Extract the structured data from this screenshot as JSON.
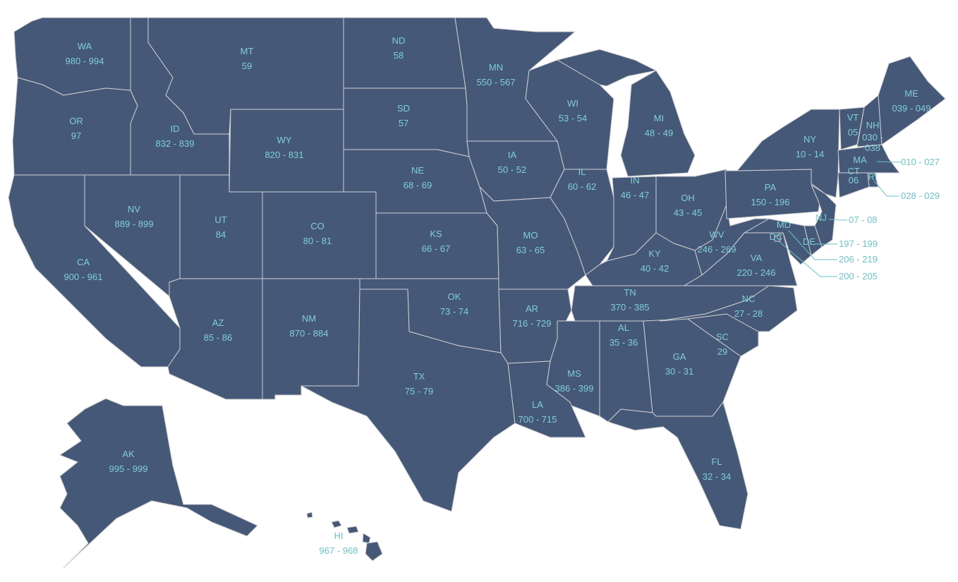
{
  "map": {
    "fill_color": "#465878",
    "border_color": "#cfcfcf",
    "label_color": "#7ecfd3",
    "states": [
      {
        "abbr": "WA",
        "zip": "980 - 994"
      },
      {
        "abbr": "OR",
        "zip": "97"
      },
      {
        "abbr": "CA",
        "zip": "900 - 961"
      },
      {
        "abbr": "ID",
        "zip": "832 - 839"
      },
      {
        "abbr": "MT",
        "zip": "59"
      },
      {
        "abbr": "WY",
        "zip": "820 - 831"
      },
      {
        "abbr": "NV",
        "zip": "889 - 899"
      },
      {
        "abbr": "UT",
        "zip": "84"
      },
      {
        "abbr": "CO",
        "zip": "80 - 81"
      },
      {
        "abbr": "AZ",
        "zip": "85 - 86"
      },
      {
        "abbr": "NM",
        "zip": "870 - 884"
      },
      {
        "abbr": "ND",
        "zip": "58"
      },
      {
        "abbr": "SD",
        "zip": "57"
      },
      {
        "abbr": "NE",
        "zip": "68 - 69"
      },
      {
        "abbr": "KS",
        "zip": "66 - 67"
      },
      {
        "abbr": "OK",
        "zip": "73 - 74"
      },
      {
        "abbr": "TX",
        "zip": "75 - 79"
      },
      {
        "abbr": "MN",
        "zip": "550 - 567"
      },
      {
        "abbr": "IA",
        "zip": "50 - 52"
      },
      {
        "abbr": "MO",
        "zip": "63 - 65"
      },
      {
        "abbr": "AR",
        "zip": "716 - 729"
      },
      {
        "abbr": "LA",
        "zip": "700 - 715"
      },
      {
        "abbr": "WI",
        "zip": "53 - 54"
      },
      {
        "abbr": "IL",
        "zip": "60 - 62"
      },
      {
        "abbr": "MI",
        "zip": "48 - 49"
      },
      {
        "abbr": "IN",
        "zip": "46 - 47"
      },
      {
        "abbr": "OH",
        "zip": "43 - 45"
      },
      {
        "abbr": "KY",
        "zip": "40 - 42"
      },
      {
        "abbr": "TN",
        "zip": "370 - 385"
      },
      {
        "abbr": "MS",
        "zip": "386 - 399"
      },
      {
        "abbr": "AL",
        "zip": "35 - 36"
      },
      {
        "abbr": "GA",
        "zip": "30 - 31"
      },
      {
        "abbr": "FL",
        "zip": "32 - 34"
      },
      {
        "abbr": "SC",
        "zip": "29"
      },
      {
        "abbr": "NC",
        "zip": "27 - 28"
      },
      {
        "abbr": "VA",
        "zip": "220 - 246"
      },
      {
        "abbr": "WV",
        "zip": "246 - 269"
      },
      {
        "abbr": "PA",
        "zip": "150 - 196"
      },
      {
        "abbr": "NY",
        "zip": "10 - 14"
      },
      {
        "abbr": "NJ",
        "zip": "07 - 08"
      },
      {
        "abbr": "DE",
        "zip": "197 - 199"
      },
      {
        "abbr": "MD",
        "zip": "206 - 219"
      },
      {
        "abbr": "DC",
        "zip": "200 - 205"
      },
      {
        "abbr": "VT",
        "zip": "05"
      },
      {
        "abbr": "NH",
        "zip": "030 - 038"
      },
      {
        "abbr": "ME",
        "zip": "039 - 049"
      },
      {
        "abbr": "MA",
        "zip": "010 - 027"
      },
      {
        "abbr": "CT",
        "zip": "06"
      },
      {
        "abbr": "RI",
        "zip": "028 - 029"
      },
      {
        "abbr": "AK",
        "zip": "995 - 999"
      },
      {
        "abbr": "HI",
        "zip": "967 - 968"
      }
    ]
  }
}
